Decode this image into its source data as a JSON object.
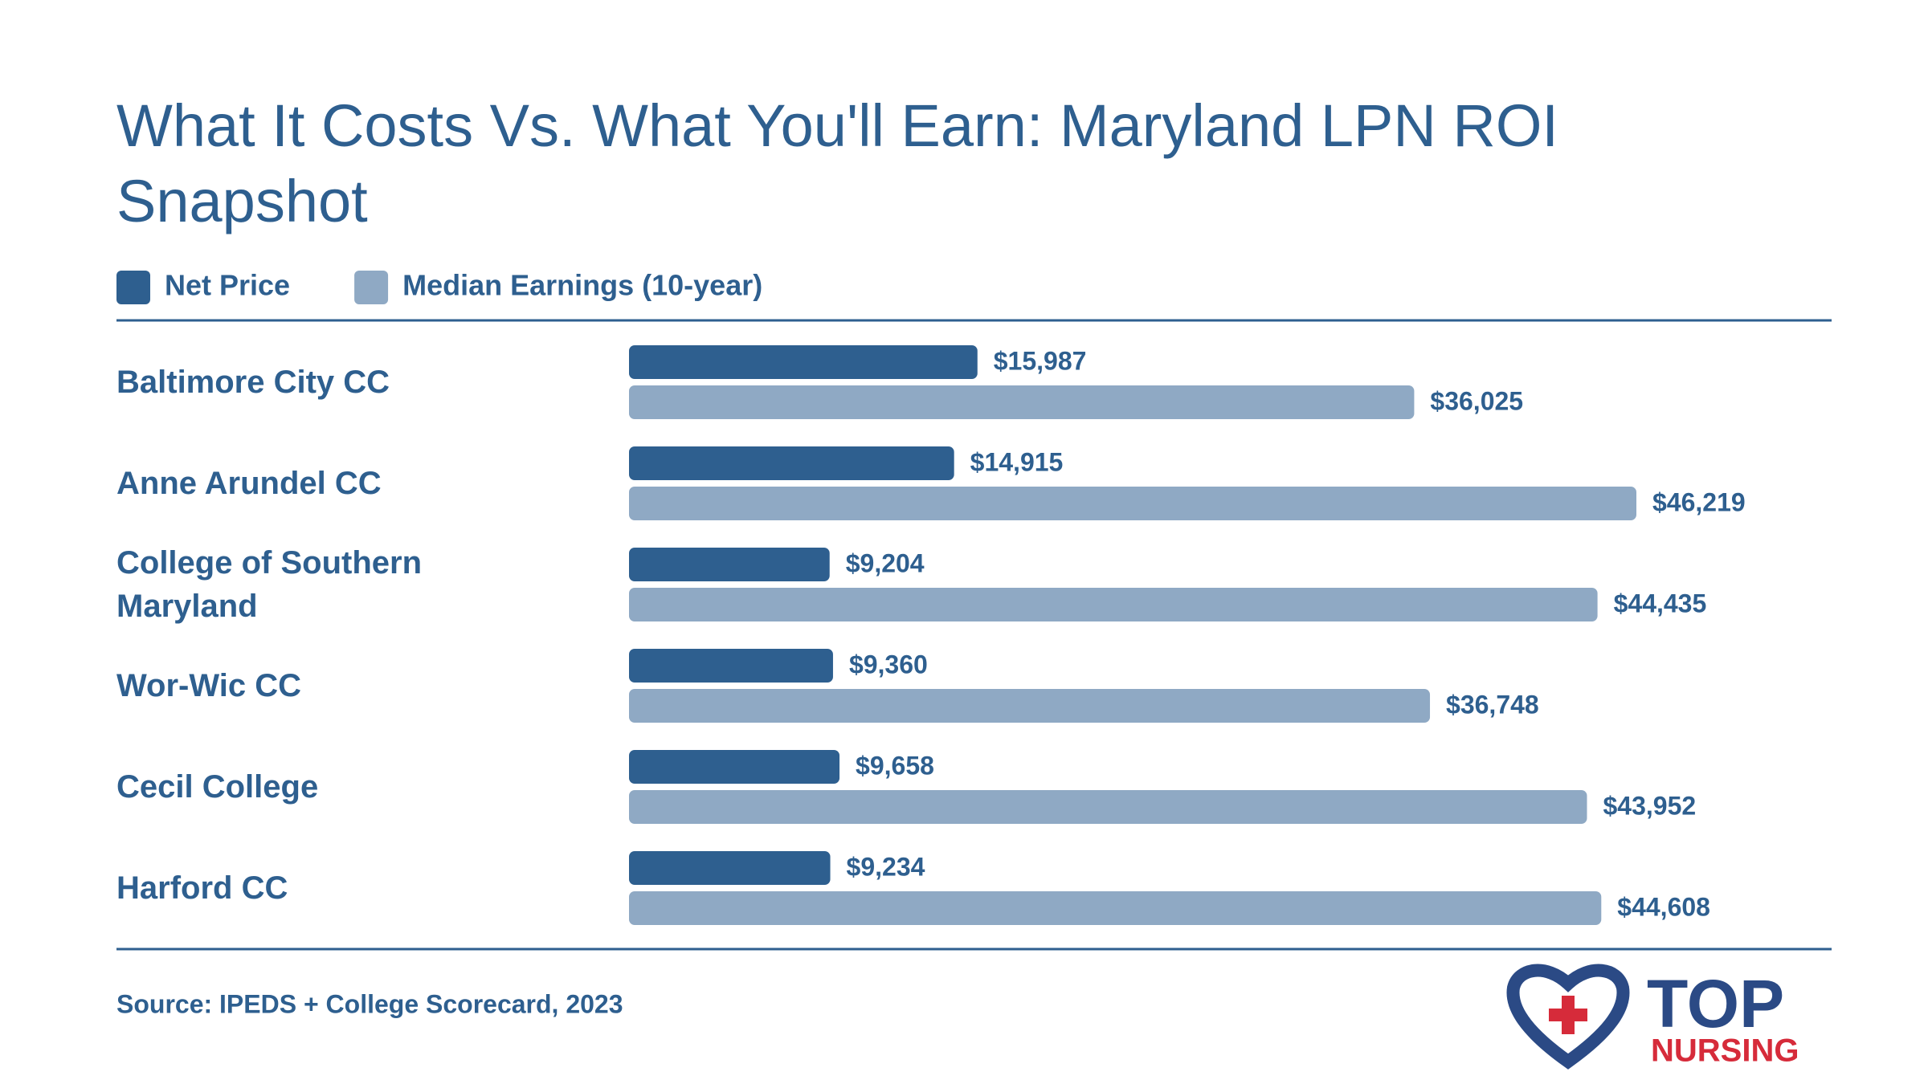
{
  "chart_data": {
    "type": "grouped-barh",
    "title": "What It Costs Vs. What You'll Earn: Maryland LPN ROI Snapshot",
    "categories": [
      "Baltimore City CC",
      "Anne Arundel CC",
      "College of Southern Maryland",
      "Wor-Wic CC",
      "Cecil College",
      "Harford CC"
    ],
    "series": [
      {
        "name": "Net Price",
        "color": "#2e5f8f",
        "values": [
          15987,
          14915,
          9204,
          9360,
          9658,
          9234
        ],
        "value_labels": [
          "$15,987",
          "$14,915",
          "$9,204",
          "$9,360",
          "$9,658",
          "$9,234"
        ]
      },
      {
        "name": "Median Earnings (10-year)",
        "color": "#8fa9c4",
        "values": [
          36025,
          46219,
          44435,
          36748,
          43952,
          44608
        ],
        "value_labels": [
          "$36,025",
          "$46,219",
          "$44,435",
          "$36,748",
          "$43,952",
          "$44,608"
        ]
      }
    ],
    "legend": "top-left",
    "source": "Source: IPEDS + College Scorecard, 2023"
  },
  "logo": {
    "text": "TOP",
    "subtext": "NURSING"
  }
}
